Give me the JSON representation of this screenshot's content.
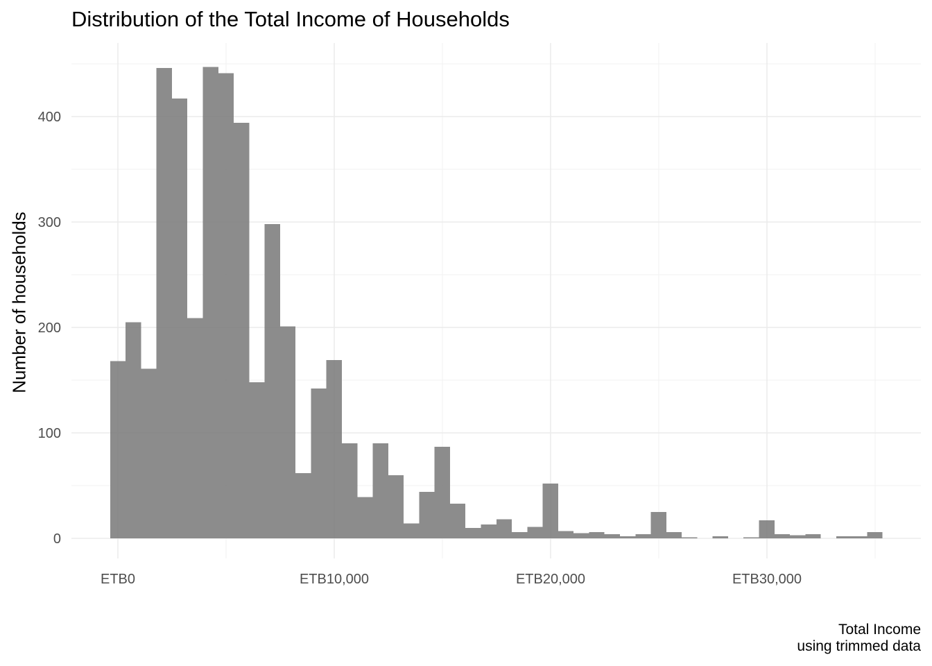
{
  "chart_data": {
    "type": "bar",
    "title": "Distribution of the Total Income of Households",
    "xlabel": "Total Income",
    "caption_line2": "using trimmed data",
    "ylabel": "Number of households",
    "bin_width": 714,
    "bins_start": -357,
    "values": [
      168,
      205,
      161,
      446,
      417,
      209,
      447,
      441,
      394,
      148,
      298,
      201,
      62,
      142,
      169,
      90,
      39,
      90,
      60,
      14,
      44,
      87,
      33,
      10,
      13,
      18,
      6,
      11,
      52,
      7,
      5,
      6,
      4,
      2,
      4,
      25,
      6,
      1,
      0,
      2,
      0,
      1,
      17,
      4,
      3,
      4,
      0,
      2,
      2,
      6
    ],
    "xlim": [
      -2000,
      37000
    ],
    "ylim": [
      -15,
      450
    ],
    "x_ticks": [
      0,
      10000,
      20000,
      30000
    ],
    "x_tick_labels": [
      "ETB0",
      "ETB10,000",
      "ETB20,000",
      "ETB30,000"
    ],
    "y_ticks": [
      0,
      100,
      200,
      300,
      400
    ],
    "y_tick_labels": [
      "0",
      "100",
      "200",
      "300",
      "400"
    ],
    "grid": true,
    "bar_color": "#808080"
  }
}
